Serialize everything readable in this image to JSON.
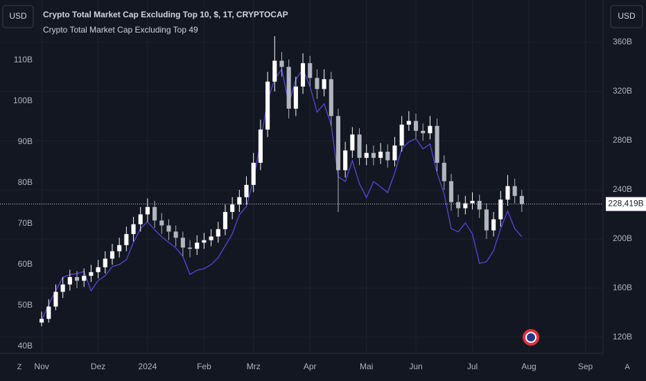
{
  "chart_data": {
    "type": "candlestick",
    "title": "Crypto Total Market Cap Excluding Top 10, $, 1T, CRYPTOCAP",
    "left_scale_label": "USD",
    "right_scale_label": "USD",
    "corner_buttons": [
      "Z",
      "A"
    ],
    "grid": true,
    "categories": [
      "Nov",
      null,
      null,
      null,
      null,
      null,
      null,
      null,
      "Dez",
      null,
      null,
      null,
      null,
      null,
      null,
      "2024",
      null,
      null,
      null,
      null,
      null,
      null,
      null,
      "Feb",
      null,
      null,
      null,
      null,
      null,
      null,
      "Mrz",
      null,
      null,
      null,
      null,
      null,
      null,
      null,
      "Apr",
      null,
      null,
      null,
      null,
      null,
      null,
      null,
      "Mai",
      null,
      null,
      null,
      null,
      null,
      null,
      "Jun",
      null,
      null,
      null,
      null,
      null,
      null,
      null,
      "Jul",
      null,
      null,
      null,
      null,
      null,
      null,
      null,
      "Aug",
      null,
      null,
      null,
      null,
      null,
      null,
      null,
      "Sep",
      null,
      null
    ],
    "ylim": [
      38.3,
      124.7
    ],
    "yticks": [
      {
        "value": 40,
        "label": "40B"
      },
      {
        "value": 50,
        "label": "50B"
      },
      {
        "value": 60,
        "label": "60B"
      },
      {
        "value": 70,
        "label": "70B"
      },
      {
        "value": 80,
        "label": "80B"
      },
      {
        "value": 90,
        "label": "90B"
      },
      {
        "value": 100,
        "label": "100B"
      },
      {
        "value": 110,
        "label": "110B"
      }
    ],
    "y2lim": [
      107,
      394.4
    ],
    "y2ticks": [
      {
        "value": 120,
        "label": "120B"
      },
      {
        "value": 160,
        "label": "160B"
      },
      {
        "value": 200,
        "label": "200B"
      },
      {
        "value": 240,
        "label": "240B"
      },
      {
        "value": 280,
        "label": "280B"
      },
      {
        "value": 320,
        "label": "320B"
      },
      {
        "value": 360,
        "label": "360B"
      }
    ],
    "price_line": {
      "value": 228.419,
      "label": "228,419B"
    },
    "series": [
      {
        "name": "Crypto Total Market Cap Excluding Top 10, $, 1T, CRYPTOCAP",
        "type": "candlestick",
        "axis": "y2",
        "up_color": "#ffffff",
        "down_color": "#b2b5be",
        "open": [
          132,
          135,
          145,
          157,
          163,
          169,
          166,
          170,
          173,
          177,
          184,
          190,
          195,
          204,
          212,
          220,
          226,
          215,
          211,
          206,
          201,
          193,
          192,
          197,
          199,
          202,
          208,
          222,
          228,
          234,
          244,
          262,
          289,
          328,
          345,
          340,
          306,
          324,
          343,
          331,
          322,
          330,
          300,
          256,
          272,
          285,
          266,
          270,
          266,
          271,
          264,
          276,
          293,
          296,
          288,
          286,
          292,
          262,
          247,
          230,
          225,
          229,
          231,
          224,
          207,
          216,
          232,
          243,
          235,
          null,
          null,
          null,
          null,
          null,
          null,
          null,
          null,
          null,
          null,
          null
        ],
        "high": [
          141,
          151,
          163,
          169,
          175,
          174,
          176,
          179,
          183,
          190,
          196,
          201,
          210,
          218,
          226,
          233,
          231,
          221,
          216,
          211,
          206,
          199,
          203,
          205,
          208,
          214,
          228,
          234,
          240,
          251,
          270,
          297,
          336,
          365,
          352,
          346,
          332,
          351,
          349,
          338,
          338,
          336,
          306,
          279,
          291,
          290,
          277,
          276,
          278,
          277,
          283,
          300,
          304,
          302,
          294,
          300,
          298,
          268,
          253,
          236,
          235,
          238,
          236,
          229,
          222,
          239,
          252,
          249,
          240,
          null,
          null,
          null,
          null,
          null,
          null,
          null,
          null,
          null,
          null,
          null
        ],
        "low": [
          129,
          132,
          142,
          152,
          158,
          160,
          161,
          165,
          168,
          172,
          179,
          185,
          190,
          198,
          206,
          214,
          209,
          204,
          199,
          194,
          186,
          185,
          187,
          192,
          194,
          197,
          203,
          216,
          222,
          228,
          238,
          256,
          283,
          320,
          332,
          298,
          300,
          318,
          324,
          314,
          316,
          292,
          222,
          250,
          266,
          260,
          260,
          260,
          261,
          258,
          259,
          271,
          288,
          282,
          280,
          281,
          255,
          240,
          223,
          218,
          220,
          224,
          217,
          200,
          202,
          210,
          227,
          229,
          222,
          null,
          null,
          null,
          null,
          null,
          null,
          null,
          null,
          null,
          null,
          null
        ],
        "close": [
          135,
          145,
          157,
          163,
          169,
          166,
          170,
          173,
          177,
          184,
          190,
          195,
          204,
          212,
          220,
          226,
          215,
          211,
          206,
          201,
          193,
          192,
          197,
          199,
          202,
          208,
          222,
          228,
          234,
          244,
          262,
          289,
          328,
          345,
          340,
          306,
          324,
          343,
          331,
          322,
          330,
          300,
          256,
          272,
          285,
          266,
          270,
          266,
          271,
          264,
          276,
          293,
          296,
          288,
          286,
          292,
          262,
          247,
          230,
          225,
          229,
          231,
          224,
          207,
          216,
          232,
          243,
          235,
          228.419,
          null,
          null,
          null,
          null,
          null,
          null,
          null,
          null,
          null,
          null,
          null
        ]
      },
      {
        "name": "Crypto Total Market Cap Excluding Top 49",
        "type": "line",
        "color": "#5a45de",
        "values": [
          46.4,
          50.2,
          53.6,
          56.9,
          57.5,
          57.8,
          58.3,
          53.6,
          56.1,
          57.3,
          59.5,
          60.0,
          61.2,
          65.4,
          68.8,
          70.5,
          68.5,
          66.8,
          65.4,
          64.1,
          62.0,
          57.6,
          58.6,
          59.0,
          60.0,
          61.7,
          64.6,
          67.5,
          72.2,
          74.2,
          80.7,
          90.0,
          100.2,
          105.3,
          107.8,
          99.3,
          105.3,
          107.8,
          103.6,
          97.3,
          99.3,
          94.2,
          81.5,
          80.3,
          85.4,
          79.8,
          76.4,
          80.3,
          79.0,
          77.6,
          82.4,
          88.3,
          90.0,
          90.8,
          88.3,
          89.5,
          82.4,
          77.3,
          68.8,
          68.0,
          70.2,
          67.5,
          60.3,
          60.7,
          63.4,
          68.8,
          73.1,
          68.8,
          66.8,
          null,
          null,
          null,
          null,
          null,
          null,
          null,
          null,
          null,
          null,
          null
        ]
      }
    ]
  }
}
